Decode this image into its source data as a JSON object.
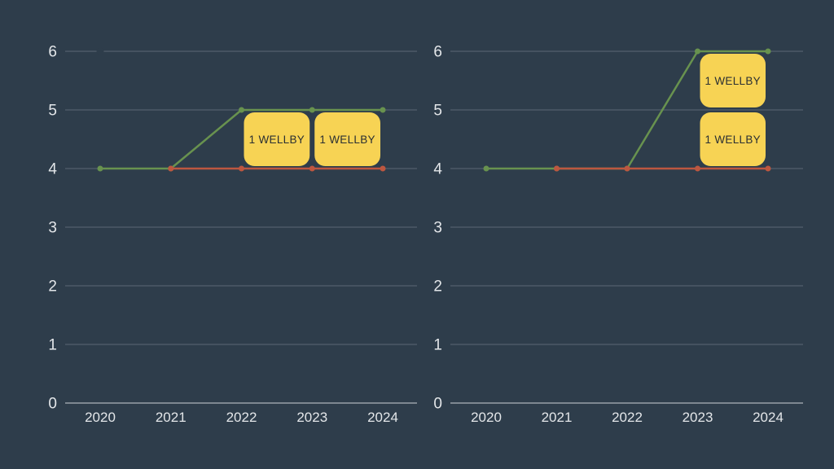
{
  "page": {
    "background": "#2e3d4b"
  },
  "colors": {
    "grid_line": "#4d5a67",
    "zero_axis_line": "#7e8791",
    "tick_label": "#e3e6e9",
    "annotation_fill": "#f7d354",
    "annotation_text": "#2a2f33"
  },
  "chart_data": [
    {
      "type": "line",
      "title": "",
      "x": [
        2020,
        2021,
        2022,
        2023,
        2024
      ],
      "x_tick_labels": [
        "2020",
        "2021",
        "2022",
        "2023",
        "2024"
      ],
      "y_ticks": [
        0,
        1,
        2,
        3,
        4,
        5,
        6
      ],
      "ylim": [
        0,
        6
      ],
      "grid": true,
      "legend": "none",
      "series": [
        {
          "name": "green-line",
          "color": "#68924f",
          "x": [
            2020,
            2021,
            2022,
            2023,
            2024
          ],
          "values": [
            4,
            4,
            5,
            5,
            5
          ]
        },
        {
          "name": "red-line",
          "color": "#bd5740",
          "x": [
            2021,
            2022,
            2023,
            2024
          ],
          "values": [
            4,
            4,
            4,
            4
          ]
        }
      ],
      "annotations": [
        {
          "label": "1 WELLBY",
          "x_from": 2022,
          "x_to": 2023,
          "y_from": 4,
          "y_to": 5
        },
        {
          "label": "1 WELLBY",
          "x_from": 2023,
          "x_to": 2024,
          "y_from": 4,
          "y_to": 5
        }
      ],
      "grid_gap_at": {
        "x": 2020,
        "y": 6
      }
    },
    {
      "type": "line",
      "title": "",
      "x": [
        2020,
        2021,
        2022,
        2023,
        2024
      ],
      "x_tick_labels": [
        "2020",
        "2021",
        "2022",
        "2023",
        "2024"
      ],
      "y_ticks": [
        0,
        1,
        2,
        3,
        4,
        5,
        6
      ],
      "ylim": [
        0,
        6
      ],
      "grid": true,
      "legend": "none",
      "series": [
        {
          "name": "green-line",
          "color": "#68924f",
          "x": [
            2020,
            2021,
            2022,
            2023,
            2024
          ],
          "values": [
            4,
            4,
            4,
            6,
            6
          ]
        },
        {
          "name": "red-line",
          "color": "#bd5740",
          "x": [
            2021,
            2022,
            2023,
            2024
          ],
          "values": [
            4,
            4,
            4,
            4
          ]
        }
      ],
      "annotations": [
        {
          "label": "1 WELLBY",
          "x_from": 2023,
          "x_to": 2024,
          "y_from": 5,
          "y_to": 6
        },
        {
          "label": "1 WELLBY",
          "x_from": 2023,
          "x_to": 2024,
          "y_from": 4,
          "y_to": 5
        }
      ]
    }
  ]
}
